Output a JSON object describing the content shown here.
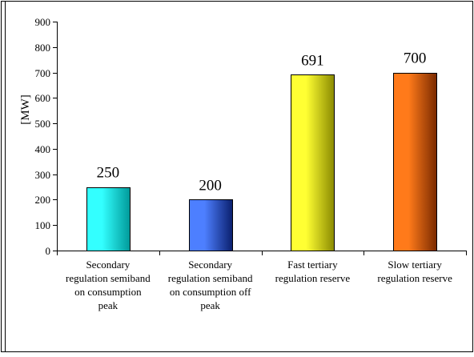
{
  "chart_data": {
    "type": "bar",
    "categories": [
      [
        "Secondary",
        "regulation semiband",
        "on consumption",
        "peak"
      ],
      [
        "Secondary",
        "regulation semiband",
        "on consumption off",
        "peak"
      ],
      [
        "Fast tertiary",
        "regulation reserve"
      ],
      [
        "Slow tertiary",
        "regulation reserve"
      ]
    ],
    "values": [
      250,
      200,
      691,
      700
    ],
    "data_labels": [
      "250",
      "200",
      "691",
      "700"
    ],
    "title": "",
    "xlabel": "",
    "ylabel": "[MW]",
    "ylim": [
      0,
      900
    ],
    "yticks": [
      0,
      100,
      200,
      300,
      400,
      500,
      600,
      700,
      800,
      900
    ],
    "ytick_labels": [
      "0",
      "100",
      "200",
      "300",
      "400",
      "500",
      "600",
      "700",
      "800",
      "900"
    ],
    "bar_colors": [
      {
        "light": "#33ffff",
        "dark": "#009999"
      },
      {
        "light": "#4d7fff",
        "dark": "#0a1f6e"
      },
      {
        "light": "#ffff33",
        "dark": "#8a8a00"
      },
      {
        "light": "#ff7a1a",
        "dark": "#7a2a00"
      }
    ],
    "grid": false,
    "legend": "none"
  }
}
